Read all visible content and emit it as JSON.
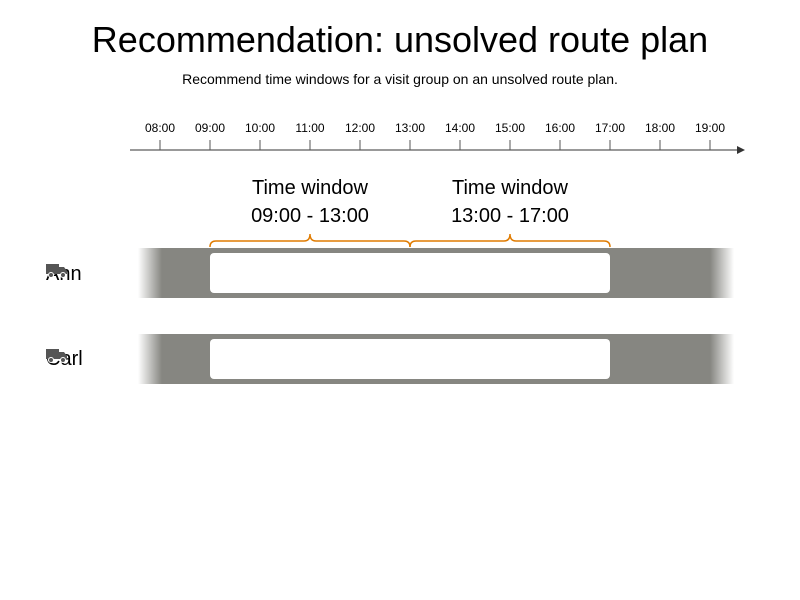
{
  "title": "Recommendation: unsolved route plan",
  "subtitle": "Recommend time windows for a visit group on an unsolved route plan.",
  "timeline": {
    "ticks": [
      "08:00",
      "09:00",
      "10:00",
      "11:00",
      "12:00",
      "13:00",
      "14:00",
      "15:00",
      "16:00",
      "17:00",
      "18:00",
      "19:00"
    ]
  },
  "time_windows": [
    {
      "heading": "Time window",
      "range": "09:00 - 13:00",
      "start": "09:00",
      "end": "13:00"
    },
    {
      "heading": "Time window",
      "range": "13:00 - 17:00",
      "start": "13:00",
      "end": "17:00"
    }
  ],
  "drivers": [
    {
      "name": "Ann",
      "icon": "truck-icon",
      "shift_start": "09:00",
      "shift_end": "17:00"
    },
    {
      "name": "Carl",
      "icon": "truck-icon",
      "shift_start": "09:00",
      "shift_end": "17:00"
    }
  ],
  "colors": {
    "lane": "#868681",
    "bracket": "#E07B00",
    "shift": "#ffffff",
    "icon": "#555555"
  }
}
